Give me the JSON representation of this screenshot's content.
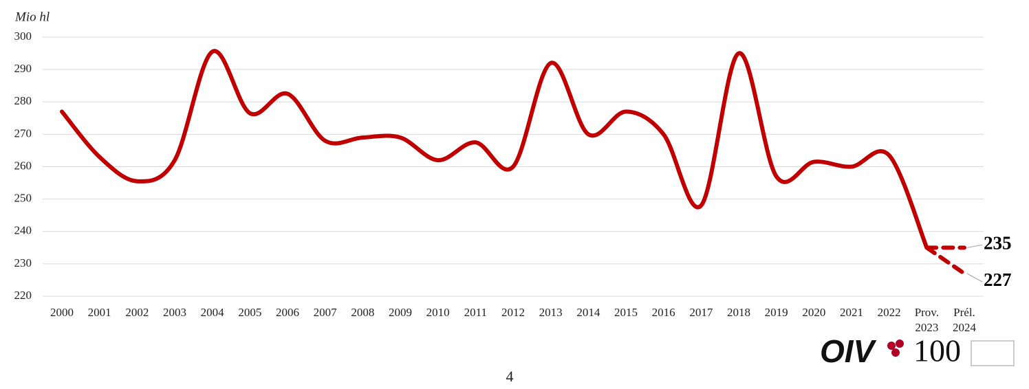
{
  "chart_data": {
    "type": "line",
    "y_label": "Mio hl",
    "categories": [
      "2000",
      "2001",
      "2002",
      "2003",
      "2004",
      "2005",
      "2006",
      "2007",
      "2008",
      "2009",
      "2010",
      "2011",
      "2012",
      "2013",
      "2014",
      "2015",
      "2016",
      "2017",
      "2018",
      "2019",
      "2020",
      "2021",
      "2022",
      "Prov. 2023",
      "Prél. 2024"
    ],
    "series": [
      {
        "color": "#c00000",
        "dashed": false,
        "values": [
          277,
          263,
          255.5,
          262,
          295.5,
          276.5,
          282.5,
          268,
          269,
          269,
          262,
          267.5,
          260,
          292,
          270,
          277,
          270,
          248,
          295,
          257,
          261.5,
          260,
          263.5,
          235,
          null
        ]
      },
      {
        "color": "#c00000",
        "dashed": true,
        "values": [
          null,
          null,
          null,
          null,
          null,
          null,
          null,
          null,
          null,
          null,
          null,
          null,
          null,
          null,
          null,
          null,
          null,
          null,
          null,
          null,
          null,
          null,
          null,
          235,
          235
        ]
      },
      {
        "color": "#c00000",
        "dashed": true,
        "values": [
          null,
          null,
          null,
          null,
          null,
          null,
          null,
          null,
          null,
          null,
          null,
          null,
          null,
          null,
          null,
          null,
          null,
          null,
          null,
          null,
          null,
          null,
          null,
          235,
          227
        ]
      }
    ],
    "ylim": [
      220,
      300
    ],
    "yticks": [
      220,
      230,
      240,
      250,
      260,
      270,
      280,
      290,
      300
    ],
    "grid": true
  },
  "footer": {
    "page": "4",
    "logo": "OIV",
    "logo_number": "100"
  }
}
